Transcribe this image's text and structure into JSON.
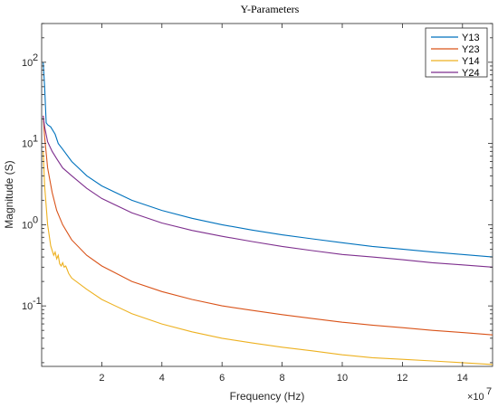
{
  "chart_data": {
    "type": "line",
    "title": "Y-Parameters",
    "xlabel": "Frequency  (Hz)",
    "ylabel": "Magnitude  (S)",
    "x_exponent_label": "×10",
    "x_exponent_power": "7",
    "xlim": [
      0,
      15
    ],
    "ylim": [
      0.018,
      300
    ],
    "yscale": "log",
    "grid": false,
    "legend_position": "top-right",
    "x_ticks": [
      2,
      4,
      6,
      8,
      10,
      12,
      14
    ],
    "x_tick_labels": [
      "2",
      "4",
      "6",
      "8",
      "10",
      "12",
      "14"
    ],
    "y_ticks": [
      0.1,
      1,
      10,
      100
    ],
    "y_tick_base": "10",
    "y_tick_powers": [
      "-1",
      "0",
      "1",
      "2"
    ],
    "series": [
      {
        "name": "Y13",
        "color": "#0072BD",
        "x": [
          0.05,
          0.1,
          0.15,
          0.2,
          0.3,
          0.45,
          0.55,
          0.7,
          1.0,
          1.5,
          2,
          3,
          4,
          5,
          6,
          7,
          8,
          9,
          10,
          11,
          12,
          13,
          14,
          15
        ],
        "y": [
          100,
          50,
          18,
          17,
          16,
          13,
          10,
          8.5,
          6.0,
          4.0,
          3.0,
          2.0,
          1.5,
          1.2,
          1.0,
          0.86,
          0.75,
          0.67,
          0.6,
          0.54,
          0.5,
          0.46,
          0.43,
          0.4
        ]
      },
      {
        "name": "Y23",
        "color": "#D95319",
        "x": [
          0.05,
          0.1,
          0.2,
          0.35,
          0.5,
          0.7,
          1.0,
          1.5,
          2,
          3,
          4,
          5,
          6,
          7,
          8,
          9,
          10,
          11,
          12,
          13,
          14,
          15
        ],
        "y": [
          22,
          12,
          5.0,
          2.5,
          1.5,
          1.0,
          0.65,
          0.42,
          0.31,
          0.2,
          0.15,
          0.12,
          0.1,
          0.088,
          0.078,
          0.07,
          0.063,
          0.058,
          0.054,
          0.05,
          0.047,
          0.044
        ]
      },
      {
        "name": "Y14",
        "color": "#EDB120",
        "x": [
          0.05,
          0.1,
          0.2,
          0.3,
          0.4,
          0.45,
          0.5,
          0.55,
          0.6,
          0.65,
          0.7,
          0.75,
          0.8,
          0.85,
          0.9,
          1.0,
          1.5,
          2,
          3,
          4,
          5,
          6,
          7,
          8,
          9,
          10,
          11,
          12,
          13,
          14,
          15
        ],
        "y": [
          8,
          3.0,
          1.0,
          0.55,
          0.42,
          0.46,
          0.38,
          0.42,
          0.33,
          0.31,
          0.34,
          0.3,
          0.31,
          0.28,
          0.25,
          0.22,
          0.16,
          0.12,
          0.08,
          0.06,
          0.048,
          0.04,
          0.035,
          0.031,
          0.028,
          0.025,
          0.023,
          0.022,
          0.021,
          0.02,
          0.019
        ]
      },
      {
        "name": "Y24",
        "color": "#7E2F8E",
        "x": [
          0.05,
          0.1,
          0.2,
          0.35,
          0.5,
          0.7,
          1.0,
          1.5,
          2,
          3,
          4,
          5,
          6,
          7,
          8,
          9,
          10,
          11,
          12,
          13,
          14,
          15
        ],
        "y": [
          22,
          16,
          10.5,
          8.0,
          6.5,
          5.0,
          4.0,
          2.8,
          2.1,
          1.4,
          1.05,
          0.85,
          0.72,
          0.62,
          0.54,
          0.48,
          0.43,
          0.4,
          0.37,
          0.34,
          0.32,
          0.3
        ]
      }
    ]
  }
}
